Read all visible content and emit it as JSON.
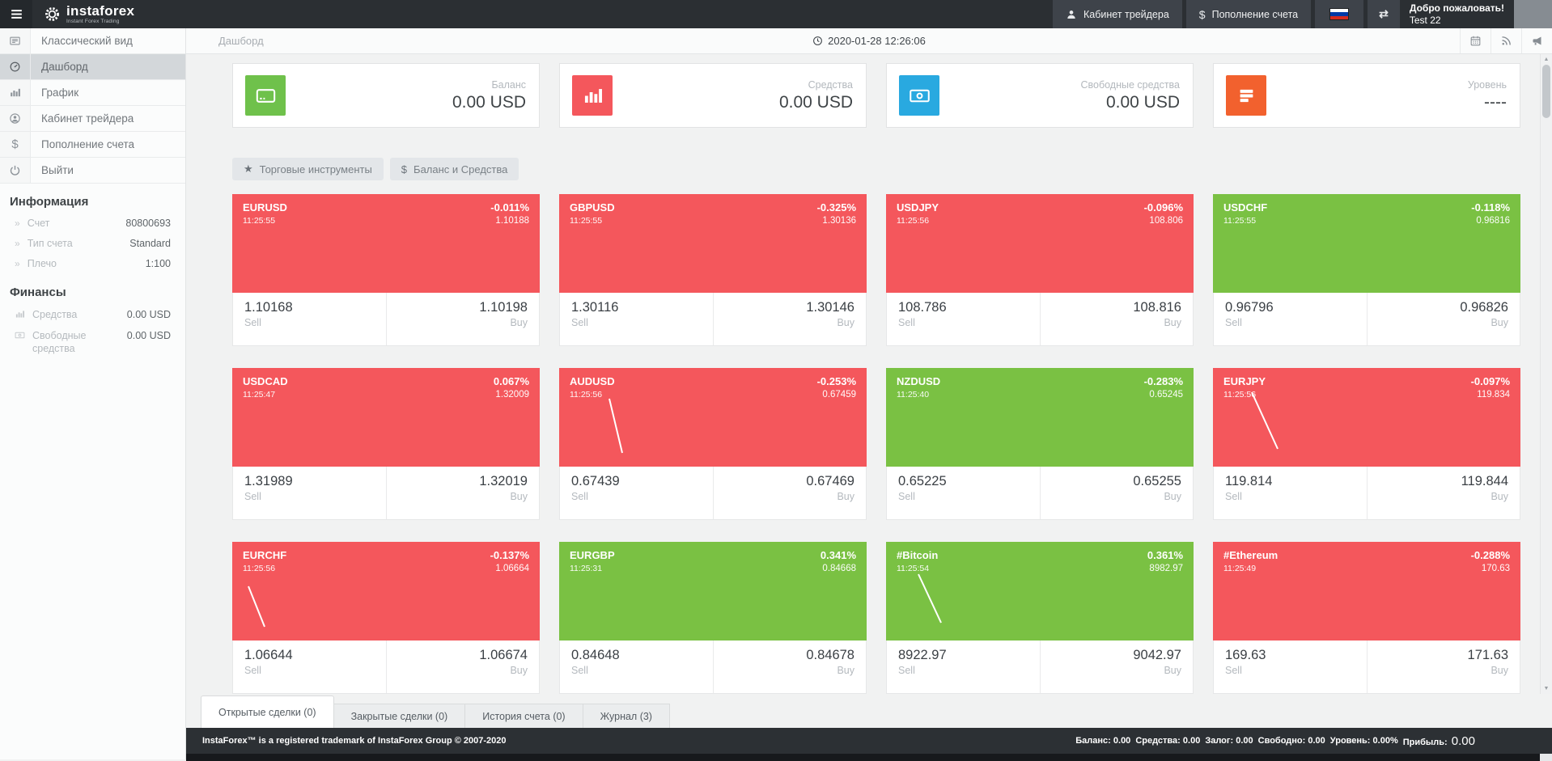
{
  "header": {
    "logo_title": "instaforex",
    "logo_subtitle": "Instant Forex Trading",
    "trader_cabinet_label": "Кабинет трейдера",
    "deposit_label": "Пополнение счета",
    "welcome_line1": "Добро пожаловать!",
    "welcome_line2": "Test 22"
  },
  "sidebar": {
    "menu": [
      {
        "id": "classic-view",
        "label": "Классический вид",
        "icon": "classic-view-icon",
        "active": false
      },
      {
        "id": "dashboard",
        "label": "Дашборд",
        "icon": "dashboard-icon",
        "active": true
      },
      {
        "id": "chart",
        "label": "График",
        "icon": "bar-chart-icon",
        "active": false
      },
      {
        "id": "trader-cabinet",
        "label": "Кабинет трейдера",
        "icon": "user-circle-icon",
        "active": false
      },
      {
        "id": "deposit",
        "label": "Пополнение счета",
        "icon": "dollar-icon",
        "active": false
      },
      {
        "id": "logout",
        "label": "Выйти",
        "icon": "power-icon",
        "active": false
      }
    ],
    "info_title": "Информация",
    "info_items": [
      {
        "label": "Счет",
        "value": "80800693"
      },
      {
        "label": "Тип счета",
        "value": "Standard"
      },
      {
        "label": "Плечо",
        "value": "1:100"
      }
    ],
    "finance_title": "Финансы",
    "finance_items": [
      {
        "label": "Средства",
        "value": "0.00 USD",
        "icon": "bar-chart-icon"
      },
      {
        "label": "Свободные средства",
        "value": "0.00 USD",
        "icon": "banknote-icon"
      }
    ]
  },
  "topbar": {
    "breadcrumb": "Дашборд",
    "timestamp": "2020-01-28 12:26:06"
  },
  "stat_cards": [
    {
      "id": "balance",
      "label": "Баланс",
      "value": "0.00 USD",
      "icon": "credit-card-icon",
      "color": "#6fc14b"
    },
    {
      "id": "equity",
      "label": "Средства",
      "value": "0.00 USD",
      "icon": "bar-chart-icon",
      "color": "#f4575c"
    },
    {
      "id": "free-margin",
      "label": "Свободные средства",
      "value": "0.00 USD",
      "icon": "banknote-icon",
      "color": "#29a9e0"
    },
    {
      "id": "level",
      "label": "Уровень",
      "value": "----",
      "icon": "list-icon",
      "color": "#f2612e"
    }
  ],
  "filters": [
    {
      "id": "instruments",
      "label": "Торговые инструменты",
      "icon": "star-icon"
    },
    {
      "id": "balance-equity",
      "label": "Баланс и Средства",
      "icon": "dollar-icon"
    }
  ],
  "labels": {
    "sell": "Sell",
    "buy": "Buy"
  },
  "tiles": [
    {
      "symbol": "EURUSD",
      "time": "11:25:55",
      "change": "-0.011%",
      "price": "1.10188",
      "sell": "1.10168",
      "buy": "1.10198",
      "color": "red",
      "spark": null
    },
    {
      "symbol": "GBPUSD",
      "time": "11:25:55",
      "change": "-0.325%",
      "price": "1.30136",
      "sell": "1.30116",
      "buy": "1.30146",
      "color": "red",
      "spark": null
    },
    {
      "symbol": "USDJPY",
      "time": "11:25:56",
      "change": "-0.096%",
      "price": "108.806",
      "sell": "108.786",
      "buy": "108.816",
      "color": "red",
      "spark": null
    },
    {
      "symbol": "USDCHF",
      "time": "11:25:55",
      "change": "-0.118%",
      "price": "0.96816",
      "sell": "0.96796",
      "buy": "0.96826",
      "color": "green",
      "spark": null
    },
    {
      "symbol": "USDCAD",
      "time": "11:25:47",
      "change": "0.067%",
      "price": "1.32009",
      "sell": "1.31989",
      "buy": "1.32019",
      "color": "red",
      "spark": null
    },
    {
      "symbol": "AUDUSD",
      "time": "11:25:56",
      "change": "-0.253%",
      "price": "0.67459",
      "sell": "0.67439",
      "buy": "0.67469",
      "color": "red",
      "spark": [
        62,
        38,
        78,
        105
      ]
    },
    {
      "symbol": "NZDUSD",
      "time": "11:25:40",
      "change": "-0.283%",
      "price": "0.65245",
      "sell": "0.65225",
      "buy": "0.65255",
      "color": "green",
      "spark": null
    },
    {
      "symbol": "EURJPY",
      "time": "11:25:56",
      "change": "-0.097%",
      "price": "119.834",
      "sell": "119.814",
      "buy": "119.844",
      "color": "red",
      "spark": [
        48,
        30,
        80,
        100
      ]
    },
    {
      "symbol": "EURCHF",
      "time": "11:25:56",
      "change": "-0.137%",
      "price": "1.06664",
      "sell": "1.06644",
      "buy": "1.06674",
      "color": "red",
      "spark": [
        20,
        55,
        40,
        105
      ]
    },
    {
      "symbol": "EURGBP",
      "time": "11:25:31",
      "change": "0.341%",
      "price": "0.84668",
      "sell": "0.84648",
      "buy": "0.84678",
      "color": "green",
      "spark": null
    },
    {
      "symbol": "#Bitcoin",
      "time": "11:25:54",
      "change": "0.361%",
      "price": "8982.97",
      "sell": "8922.97",
      "buy": "9042.97",
      "color": "green",
      "spark": [
        40,
        40,
        68,
        100
      ]
    },
    {
      "symbol": "#Ethereum",
      "time": "11:25:49",
      "change": "-0.288%",
      "price": "170.63",
      "sell": "169.63",
      "buy": "171.63",
      "color": "red",
      "spark": null
    }
  ],
  "tabs": [
    {
      "id": "open-trades",
      "label": "Открытые сделки (0)",
      "active": true
    },
    {
      "id": "closed-trades",
      "label": "Закрытые сделки (0)",
      "active": false
    },
    {
      "id": "account-history",
      "label": "История счета (0)",
      "active": false
    },
    {
      "id": "journal",
      "label": "Журнал (3)",
      "active": false
    }
  ],
  "footer": {
    "left": "InstaForex™ is a registered trademark of InstaForex Group © 2007-2020",
    "stats": [
      {
        "label": "Баланс:",
        "value": "0.00",
        "big": false
      },
      {
        "label": "Средства:",
        "value": "0.00",
        "big": false
      },
      {
        "label": "Залог:",
        "value": "0.00",
        "big": false
      },
      {
        "label": "Свободно:",
        "value": "0.00",
        "big": false
      },
      {
        "label": "Уровень:",
        "value": "0.00%",
        "big": false
      },
      {
        "label": "Прибыль:",
        "value": "0.00",
        "big": true
      }
    ]
  },
  "colors": {
    "tile_up": "#7ac143",
    "tile_down": "#f4575c",
    "accent_green": "#8dc63f"
  }
}
